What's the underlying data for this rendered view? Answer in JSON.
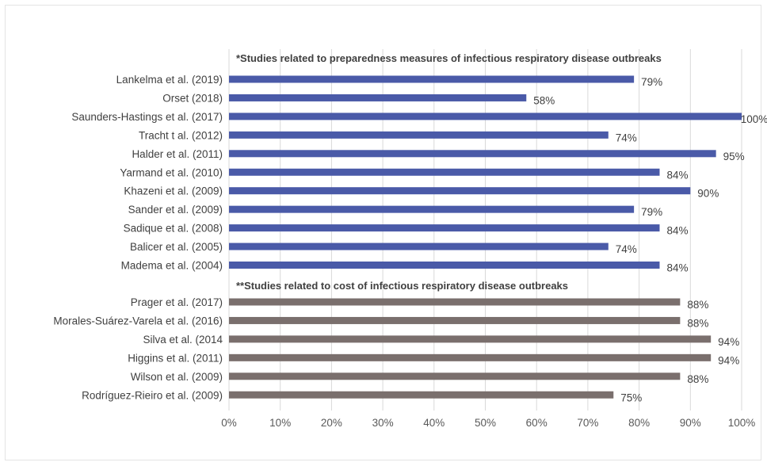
{
  "chart_data": {
    "type": "bar",
    "orientation": "horizontal",
    "xlim": [
      0,
      100
    ],
    "x_ticks": [
      "0%",
      "10%",
      "20%",
      "30%",
      "40%",
      "50%",
      "60%",
      "70%",
      "80%",
      "90%",
      "100%"
    ],
    "grid": true,
    "legend": "none",
    "groups": [
      {
        "title": "*Studies related to preparedness measures of infectious respiratory disease outbreaks",
        "color": "#4a5aa8",
        "categories": [
          "Lankelma et al. (2019)",
          "Orset (2018)",
          "Saunders-Hastings et al. (2017)",
          "Tracht t al. (2012)",
          "Halder et al. (2011)",
          "Yarmand et al. (2010)",
          "Khazeni et al. (2009)",
          "Sander et al. (2009)",
          "Sadique et al. (2008)",
          "Balicer et al. (2005)",
          "Madema et al. (2004)"
        ],
        "values": [
          79,
          58,
          100,
          74,
          95,
          84,
          90,
          79,
          84,
          74,
          84
        ],
        "value_labels": [
          "79%",
          "58%",
          "100%",
          "74%",
          "95%",
          "84%",
          "90%",
          "79%",
          "84%",
          "74%",
          "84%"
        ]
      },
      {
        "title": "**Studies related to cost of infectious respiratory disease outbreaks",
        "color": "#7a6f6d",
        "categories": [
          "Prager et al. (2017)",
          "Morales-Suárez-Varela et al. (2016)",
          "Silva et al. (2014",
          "Higgins et al. (2011)",
          "Wilson et al. (2009)",
          "Rodríguez-Rieiro et al. (2009)"
        ],
        "values": [
          88,
          88,
          94,
          94,
          88,
          75
        ],
        "value_labels": [
          "88%",
          "88%",
          "94%",
          "94%",
          "88%",
          "75%"
        ]
      }
    ]
  }
}
